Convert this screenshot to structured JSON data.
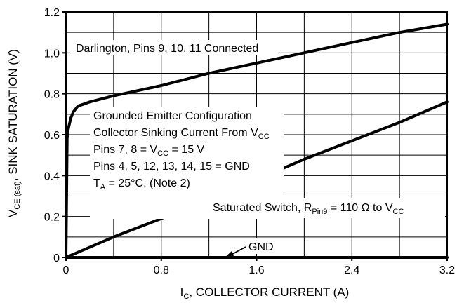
{
  "chart_data": {
    "type": "line",
    "xlabel": {
      "main": "I",
      "sub": "C",
      "rest": ", COLLECTOR CURRENT (A)"
    },
    "ylabel": {
      "main": "V",
      "sub": "CE (sat)",
      "rest": ", SINK SATURATION (V)"
    },
    "xlim": [
      0,
      3.2
    ],
    "ylim": [
      0,
      1.2
    ],
    "x_ticks": [
      0,
      0.8,
      1.6,
      2.4,
      3.2
    ],
    "x_tick_labels": [
      "0",
      "0.8",
      "1.6",
      "2.4",
      "3.2"
    ],
    "y_ticks": [
      0,
      0.2,
      0.4,
      0.6,
      0.8,
      1.0,
      1.2
    ],
    "y_tick_labels": [
      "0",
      "0.2",
      "0.4",
      "0.6",
      "0.8",
      "1.0",
      "1.2"
    ],
    "grid": true,
    "grid_x_step": 0.4,
    "grid_y_step": 0.1,
    "series": [
      {
        "x": [
          0,
          0.01,
          0.02,
          0.04,
          0.06,
          0.1,
          0.15,
          0.2,
          0.4,
          0.8,
          1.2,
          1.6,
          2.0,
          2.4,
          2.8,
          3.2
        ],
        "values": [
          0,
          0.58,
          0.63,
          0.68,
          0.71,
          0.74,
          0.75,
          0.76,
          0.79,
          0.84,
          0.9,
          0.95,
          1.0,
          1.05,
          1.1,
          1.14
        ]
      },
      {
        "x": [
          0,
          0.4,
          0.8,
          1.2,
          1.6,
          2.0,
          2.4,
          2.8,
          3.2
        ],
        "values": [
          0,
          0.1,
          0.19,
          0.29,
          0.38,
          0.48,
          0.57,
          0.66,
          0.76
        ]
      },
      {
        "x": [
          0,
          3.2
        ],
        "values": [
          0,
          0
        ]
      }
    ],
    "annotations": {
      "darlington": "Darlington, Pins 9, 10, 11 Connected",
      "line1": "Grounded Emitter Configuration",
      "line2_main": "Collector Sinking Current From V",
      "line2_sub": "CC",
      "line3_a": "Pins 7, 8 = V",
      "line3_sub": "CC",
      "line3_b": " = 15 V",
      "line4": "Pins 4, 5, 12, 13, 14, 15 = GND",
      "line5_a": "T",
      "line5_sub": "A",
      "line5_b": " = 25°C, (Note 2)",
      "switch_a": "Saturated Switch, R",
      "switch_sub1": "Pin9",
      "switch_b": " = 110 Ω to V",
      "switch_sub2": "CC",
      "gnd": "GND"
    }
  }
}
